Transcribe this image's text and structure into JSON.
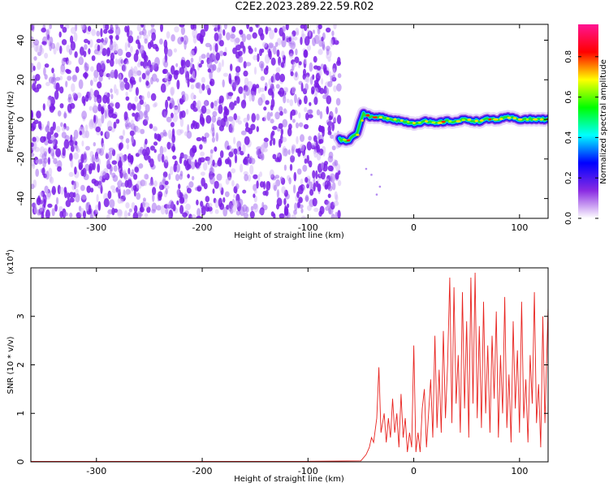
{
  "title": "C2E2.2023.289.22.59.R02",
  "chart_data": [
    {
      "type": "heatmap",
      "xlabel": "Height of straight line (km)",
      "ylabel": "Frequency (Hz)",
      "xlim": [
        -362,
        127
      ],
      "ylim": [
        -50,
        48
      ],
      "xticks": [
        -300,
        -200,
        -100,
        0,
        100
      ],
      "yticks": [
        -40,
        -20,
        0,
        20,
        40
      ],
      "noise_region": {
        "x": [
          -362,
          -70
        ],
        "y": [
          -50,
          48
        ]
      },
      "ridge": {
        "x": [
          -70,
          -63,
          -58,
          -53,
          -48,
          -40,
          -30,
          -20,
          -10,
          0,
          10,
          20,
          30,
          40,
          50,
          60,
          70,
          80,
          90,
          100,
          110,
          120,
          127
        ],
        "y": [
          -10,
          -11,
          -9,
          -6,
          3,
          1,
          1,
          0,
          -1,
          -2,
          -1,
          -2,
          -1,
          -1,
          0,
          -1,
          0,
          0,
          1,
          0,
          0,
          0,
          0
        ]
      },
      "colorbar": {
        "label": "Normalized spectral amplitude",
        "range": [
          0,
          0.96
        ],
        "ticks": [
          0.0,
          0.2,
          0.4,
          0.6,
          0.8
        ],
        "tick_labels": [
          "0.0",
          "0.2",
          "0.4",
          "0.6",
          "0.8"
        ],
        "colors": [
          "#ffffff",
          "#8a2be2",
          "#0000ff",
          "#00ffff",
          "#00ff00",
          "#ffff00",
          "#ff0000",
          "#ff1493"
        ]
      }
    },
    {
      "type": "line",
      "xlabel": "Height of straight line (km)",
      "ylabel": "SNR (10 * v/v)",
      "scale_label": "(x10",
      "scale_exp": "4",
      "scale_close": ")",
      "xlim": [
        -362,
        127
      ],
      "ylim": [
        0,
        4
      ],
      "xticks": [
        -300,
        -200,
        -100,
        0,
        100
      ],
      "yticks": [
        0,
        1,
        2,
        3
      ],
      "series": [
        {
          "color": "#e8231f",
          "x": [
            -362,
            -300,
            -200,
            -100,
            -50,
            -45,
            -42,
            -40,
            -38,
            -35,
            -33,
            -31,
            -28,
            -26,
            -24,
            -22,
            -20,
            -18,
            -16,
            -14,
            -12,
            -10,
            -8,
            -6,
            -4,
            -2,
            0,
            2,
            4,
            6,
            8,
            10,
            12,
            14,
            16,
            18,
            20,
            22,
            24,
            26,
            28,
            30,
            32,
            34,
            36,
            38,
            40,
            42,
            44,
            46,
            48,
            50,
            52,
            54,
            56,
            58,
            60,
            62,
            64,
            66,
            68,
            70,
            72,
            74,
            76,
            78,
            80,
            82,
            84,
            86,
            88,
            90,
            92,
            94,
            96,
            98,
            100,
            102,
            104,
            106,
            108,
            110,
            112,
            114,
            116,
            118,
            120,
            122,
            124,
            127
          ],
          "y": [
            0.01,
            0.01,
            0.01,
            0.01,
            0.02,
            0.15,
            0.3,
            0.5,
            0.4,
            0.9,
            1.95,
            0.6,
            1.0,
            0.4,
            0.9,
            0.5,
            1.3,
            0.6,
            1.0,
            0.3,
            1.4,
            0.5,
            0.9,
            0.2,
            0.6,
            0.3,
            2.4,
            0.2,
            0.6,
            0.2,
            1.1,
            1.5,
            0.3,
            1.0,
            1.7,
            0.5,
            2.6,
            0.7,
            1.9,
            0.6,
            2.7,
            0.9,
            2.0,
            3.8,
            0.8,
            3.6,
            1.2,
            2.2,
            0.6,
            3.5,
            1.1,
            2.9,
            0.5,
            3.8,
            1.2,
            3.9,
            0.9,
            2.8,
            0.7,
            3.3,
            1.0,
            2.4,
            0.6,
            2.6,
            1.3,
            3.1,
            0.5,
            2.2,
            1.0,
            3.4,
            0.7,
            1.8,
            0.4,
            2.9,
            1.1,
            2.3,
            0.6,
            3.3,
            0.9,
            1.7,
            0.4,
            2.2,
            1.2,
            3.5,
            0.8,
            1.6,
            0.3,
            3.0,
            0.8,
            3.2
          ]
        }
      ]
    }
  ]
}
